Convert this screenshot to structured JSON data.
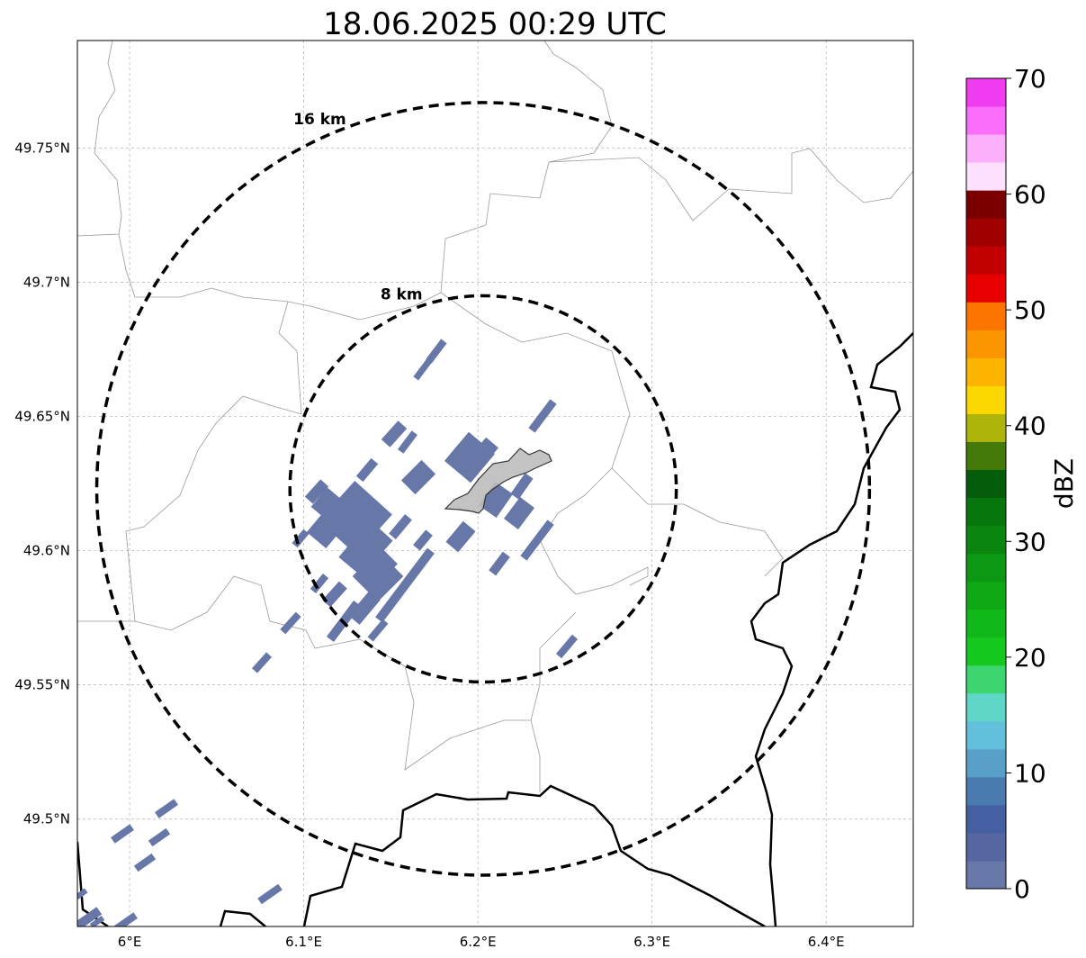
{
  "title": "18.06.2025 00:29 UTC",
  "map": {
    "lon_range": [
      5.97,
      6.45
    ],
    "lat_range": [
      49.46,
      49.79
    ],
    "center": {
      "lon": 6.203,
      "lat": 49.623
    },
    "lon_ticks": [
      {
        "value": 6.0,
        "label": "6°E"
      },
      {
        "value": 6.1,
        "label": "6.1°E"
      },
      {
        "value": 6.2,
        "label": "6.2°E"
      },
      {
        "value": 6.3,
        "label": "6.3°E"
      },
      {
        "value": 6.4,
        "label": "6.4°E"
      }
    ],
    "lat_ticks": [
      {
        "value": 49.75,
        "label": "49.75°N"
      },
      {
        "value": 49.7,
        "label": "49.7°N"
      },
      {
        "value": 49.65,
        "label": "49.65°N"
      },
      {
        "value": 49.6,
        "label": "49.6°N"
      },
      {
        "value": 49.55,
        "label": "49.55°N"
      },
      {
        "value": 49.5,
        "label": "49.5°N"
      }
    ],
    "gridlines": true,
    "range_rings": [
      {
        "radius_km": 16,
        "label": "16 km"
      },
      {
        "radius_km": 8,
        "label": "8 km"
      }
    ]
  },
  "colorbar": {
    "label": "dBZ",
    "min": 0,
    "max": 70,
    "ticks": [
      0,
      10,
      20,
      30,
      40,
      50,
      60,
      70
    ],
    "colors": [
      "#6677a8",
      "#5566a0",
      "#4460a3",
      "#4a7bb0",
      "#58a0c8",
      "#62c0dd",
      "#5fd6c8",
      "#3dd570",
      "#14c81e",
      "#10b81a",
      "#0ea814",
      "#0c9812",
      "#0a860f",
      "#07760c",
      "#055c0a",
      "#437a09",
      "#aeb40a",
      "#fdd700",
      "#fdb400",
      "#fc9600",
      "#fb7500",
      "#e80000",
      "#c20000",
      "#a00000",
      "#7a0000",
      "#fde0fd",
      "#fcb0fc",
      "#fb6efb",
      "#f03cf0"
    ]
  },
  "colors": {
    "echo": "#6677a8",
    "city": "#c4c4c4"
  }
}
